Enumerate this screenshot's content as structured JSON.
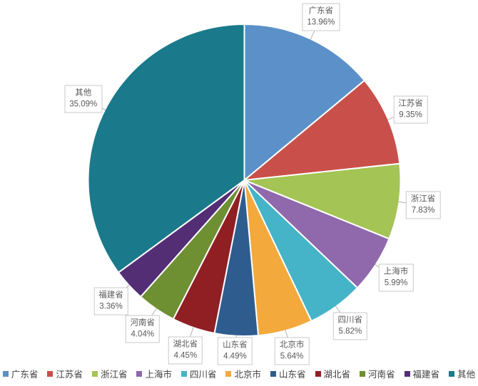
{
  "chart_data": {
    "type": "pie",
    "title": "",
    "legend_position": "bottom",
    "start_angle_deg": 0,
    "direction": "clockwise",
    "background_color": "#ffffff",
    "callout_border_color": "#c9c9c9",
    "callout_text_color": "#595959",
    "leader_line_color": "#b3b3b3",
    "slice_separator_color": "#ffffff",
    "slices": [
      {
        "name": "广东省",
        "value": 13.96,
        "pct_label": "13.96%",
        "color": "#5B91C8"
      },
      {
        "name": "江苏省",
        "value": 9.35,
        "pct_label": "9.35%",
        "color": "#C9504A"
      },
      {
        "name": "浙江省",
        "value": 7.83,
        "pct_label": "7.83%",
        "color": "#A4C455"
      },
      {
        "name": "上海市",
        "value": 5.99,
        "pct_label": "5.99%",
        "color": "#9068AC"
      },
      {
        "name": "四川省",
        "value": 5.82,
        "pct_label": "5.82%",
        "color": "#45B4C8"
      },
      {
        "name": "北京市",
        "value": 5.64,
        "pct_label": "5.64%",
        "color": "#F4A93C"
      },
      {
        "name": "山东省",
        "value": 4.49,
        "pct_label": "4.49%",
        "color": "#2E5C8F"
      },
      {
        "name": "湖北省",
        "value": 4.45,
        "pct_label": "4.45%",
        "color": "#901F24"
      },
      {
        "name": "河南省",
        "value": 4.04,
        "pct_label": "4.04%",
        "color": "#6F8F33"
      },
      {
        "name": "福建省",
        "value": 3.36,
        "pct_label": "3.36%",
        "color": "#532E75"
      },
      {
        "name": "其他",
        "value": 35.09,
        "pct_label": "35.09%",
        "color": "#1A7A8B"
      }
    ]
  }
}
